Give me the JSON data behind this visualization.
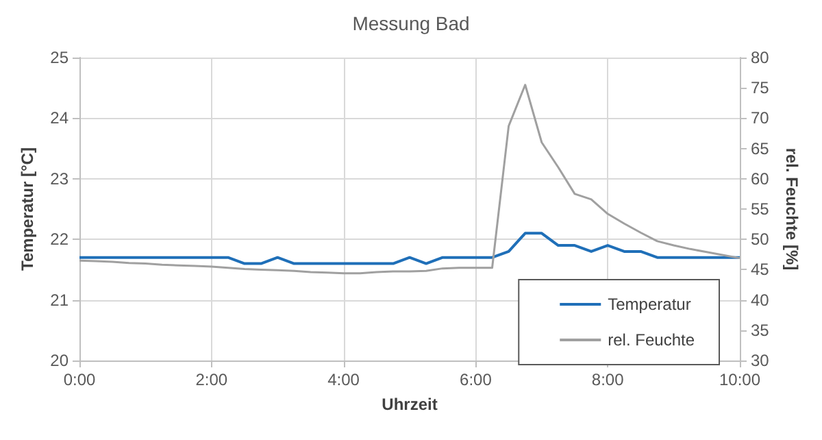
{
  "chart_data": {
    "type": "line",
    "title": "Messung Bad",
    "xlabel": "Uhrzeit",
    "ylabel": "Temperatur [°C]",
    "y2label": "rel. Feuchte [%]",
    "x": [
      0,
      0.25,
      0.5,
      0.75,
      1,
      1.25,
      1.5,
      1.75,
      2,
      2.25,
      2.5,
      2.75,
      3,
      3.25,
      3.5,
      3.75,
      4,
      4.25,
      4.5,
      4.75,
      5,
      5.25,
      5.5,
      5.75,
      6,
      6.25,
      6.5,
      6.75,
      7,
      7.25,
      7.5,
      7.75,
      8,
      8.25,
      8.5,
      8.75,
      9,
      9.25,
      9.5,
      9.75,
      10
    ],
    "series": [
      {
        "name": "Temperatur",
        "color": "#1f6fb8",
        "values": [
          21.7,
          21.7,
          21.7,
          21.7,
          21.7,
          21.7,
          21.7,
          21.7,
          21.7,
          21.7,
          21.6,
          21.6,
          21.7,
          21.6,
          21.6,
          21.6,
          21.6,
          21.6,
          21.6,
          21.6,
          21.7,
          21.6,
          21.7,
          21.7,
          21.7,
          21.7,
          21.8,
          22.1,
          22.1,
          21.9,
          21.9,
          21.8,
          21.9,
          21.8,
          21.8,
          21.7,
          21.7,
          21.7,
          21.7,
          21.7,
          21.7
        ]
      },
      {
        "name": "rel. Feuchte",
        "color": "#a0a0a0",
        "axis": "y2",
        "values": [
          46.5,
          46.4,
          46.3,
          46.1,
          46.0,
          45.8,
          45.7,
          45.6,
          45.5,
          45.3,
          45.1,
          45.0,
          44.9,
          44.8,
          44.6,
          44.5,
          44.4,
          44.4,
          44.6,
          44.7,
          44.7,
          44.8,
          45.2,
          45.3,
          45.3,
          45.3,
          68.7,
          75.5,
          66.0,
          61.9,
          57.5,
          56.6,
          54.2,
          52.6,
          51.1,
          49.7,
          49.0,
          48.4,
          47.9,
          47.4,
          46.9
        ]
      }
    ],
    "xlim": [
      0,
      10
    ],
    "xticks": [
      {
        "value": 0,
        "label": "0:00"
      },
      {
        "value": 2,
        "label": "2:00"
      },
      {
        "value": 4,
        "label": "4:00"
      },
      {
        "value": 6,
        "label": "6:00"
      },
      {
        "value": 8,
        "label": "8:00"
      },
      {
        "value": 10,
        "label": "10:00"
      }
    ],
    "ylim": [
      20,
      25
    ],
    "yticks": [
      20,
      21,
      22,
      23,
      24,
      25
    ],
    "y2lim": [
      30,
      80
    ],
    "y2ticks": [
      30,
      35,
      40,
      45,
      50,
      55,
      60,
      65,
      70,
      75,
      80
    ],
    "grid": true,
    "legend": "bottom right",
    "marker": "none",
    "line_style": "solid"
  }
}
